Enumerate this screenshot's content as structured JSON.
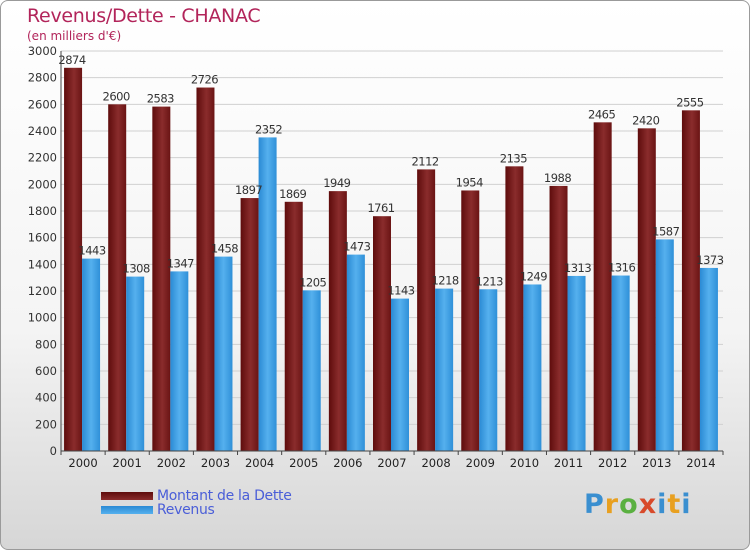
{
  "title": "Revenus/Dette - CHANAC",
  "subtitle": "(en milliers d'€)",
  "chart_data": {
    "type": "bar",
    "categories": [
      "2000",
      "2001",
      "2002",
      "2003",
      "2004",
      "2005",
      "2006",
      "2007",
      "2008",
      "2009",
      "2010",
      "2011",
      "2012",
      "2013",
      "2014"
    ],
    "series": [
      {
        "name": "Montant de la Dette",
        "color": "#7a1818",
        "values": [
          2874,
          2600,
          2583,
          2726,
          1897,
          1869,
          1949,
          1761,
          2112,
          1954,
          2135,
          1988,
          2465,
          2420,
          2555
        ]
      },
      {
        "name": "Revenus",
        "color": "#3d9de0",
        "values": [
          1443,
          1308,
          1347,
          1458,
          2352,
          1205,
          1473,
          1143,
          1218,
          1213,
          1249,
          1313,
          1316,
          1587,
          1373
        ]
      }
    ],
    "ylim": [
      0,
      3000
    ],
    "yticks": [
      0,
      200,
      400,
      600,
      800,
      1000,
      1200,
      1400,
      1600,
      1800,
      2000,
      2200,
      2400,
      2600,
      2800,
      3000
    ],
    "grid": true,
    "legend_position": "bottom-left"
  },
  "legend": {
    "debt_label": "Montant de la Dette",
    "revenue_label": "Revenus"
  },
  "logo": {
    "text": "Proxiti"
  }
}
